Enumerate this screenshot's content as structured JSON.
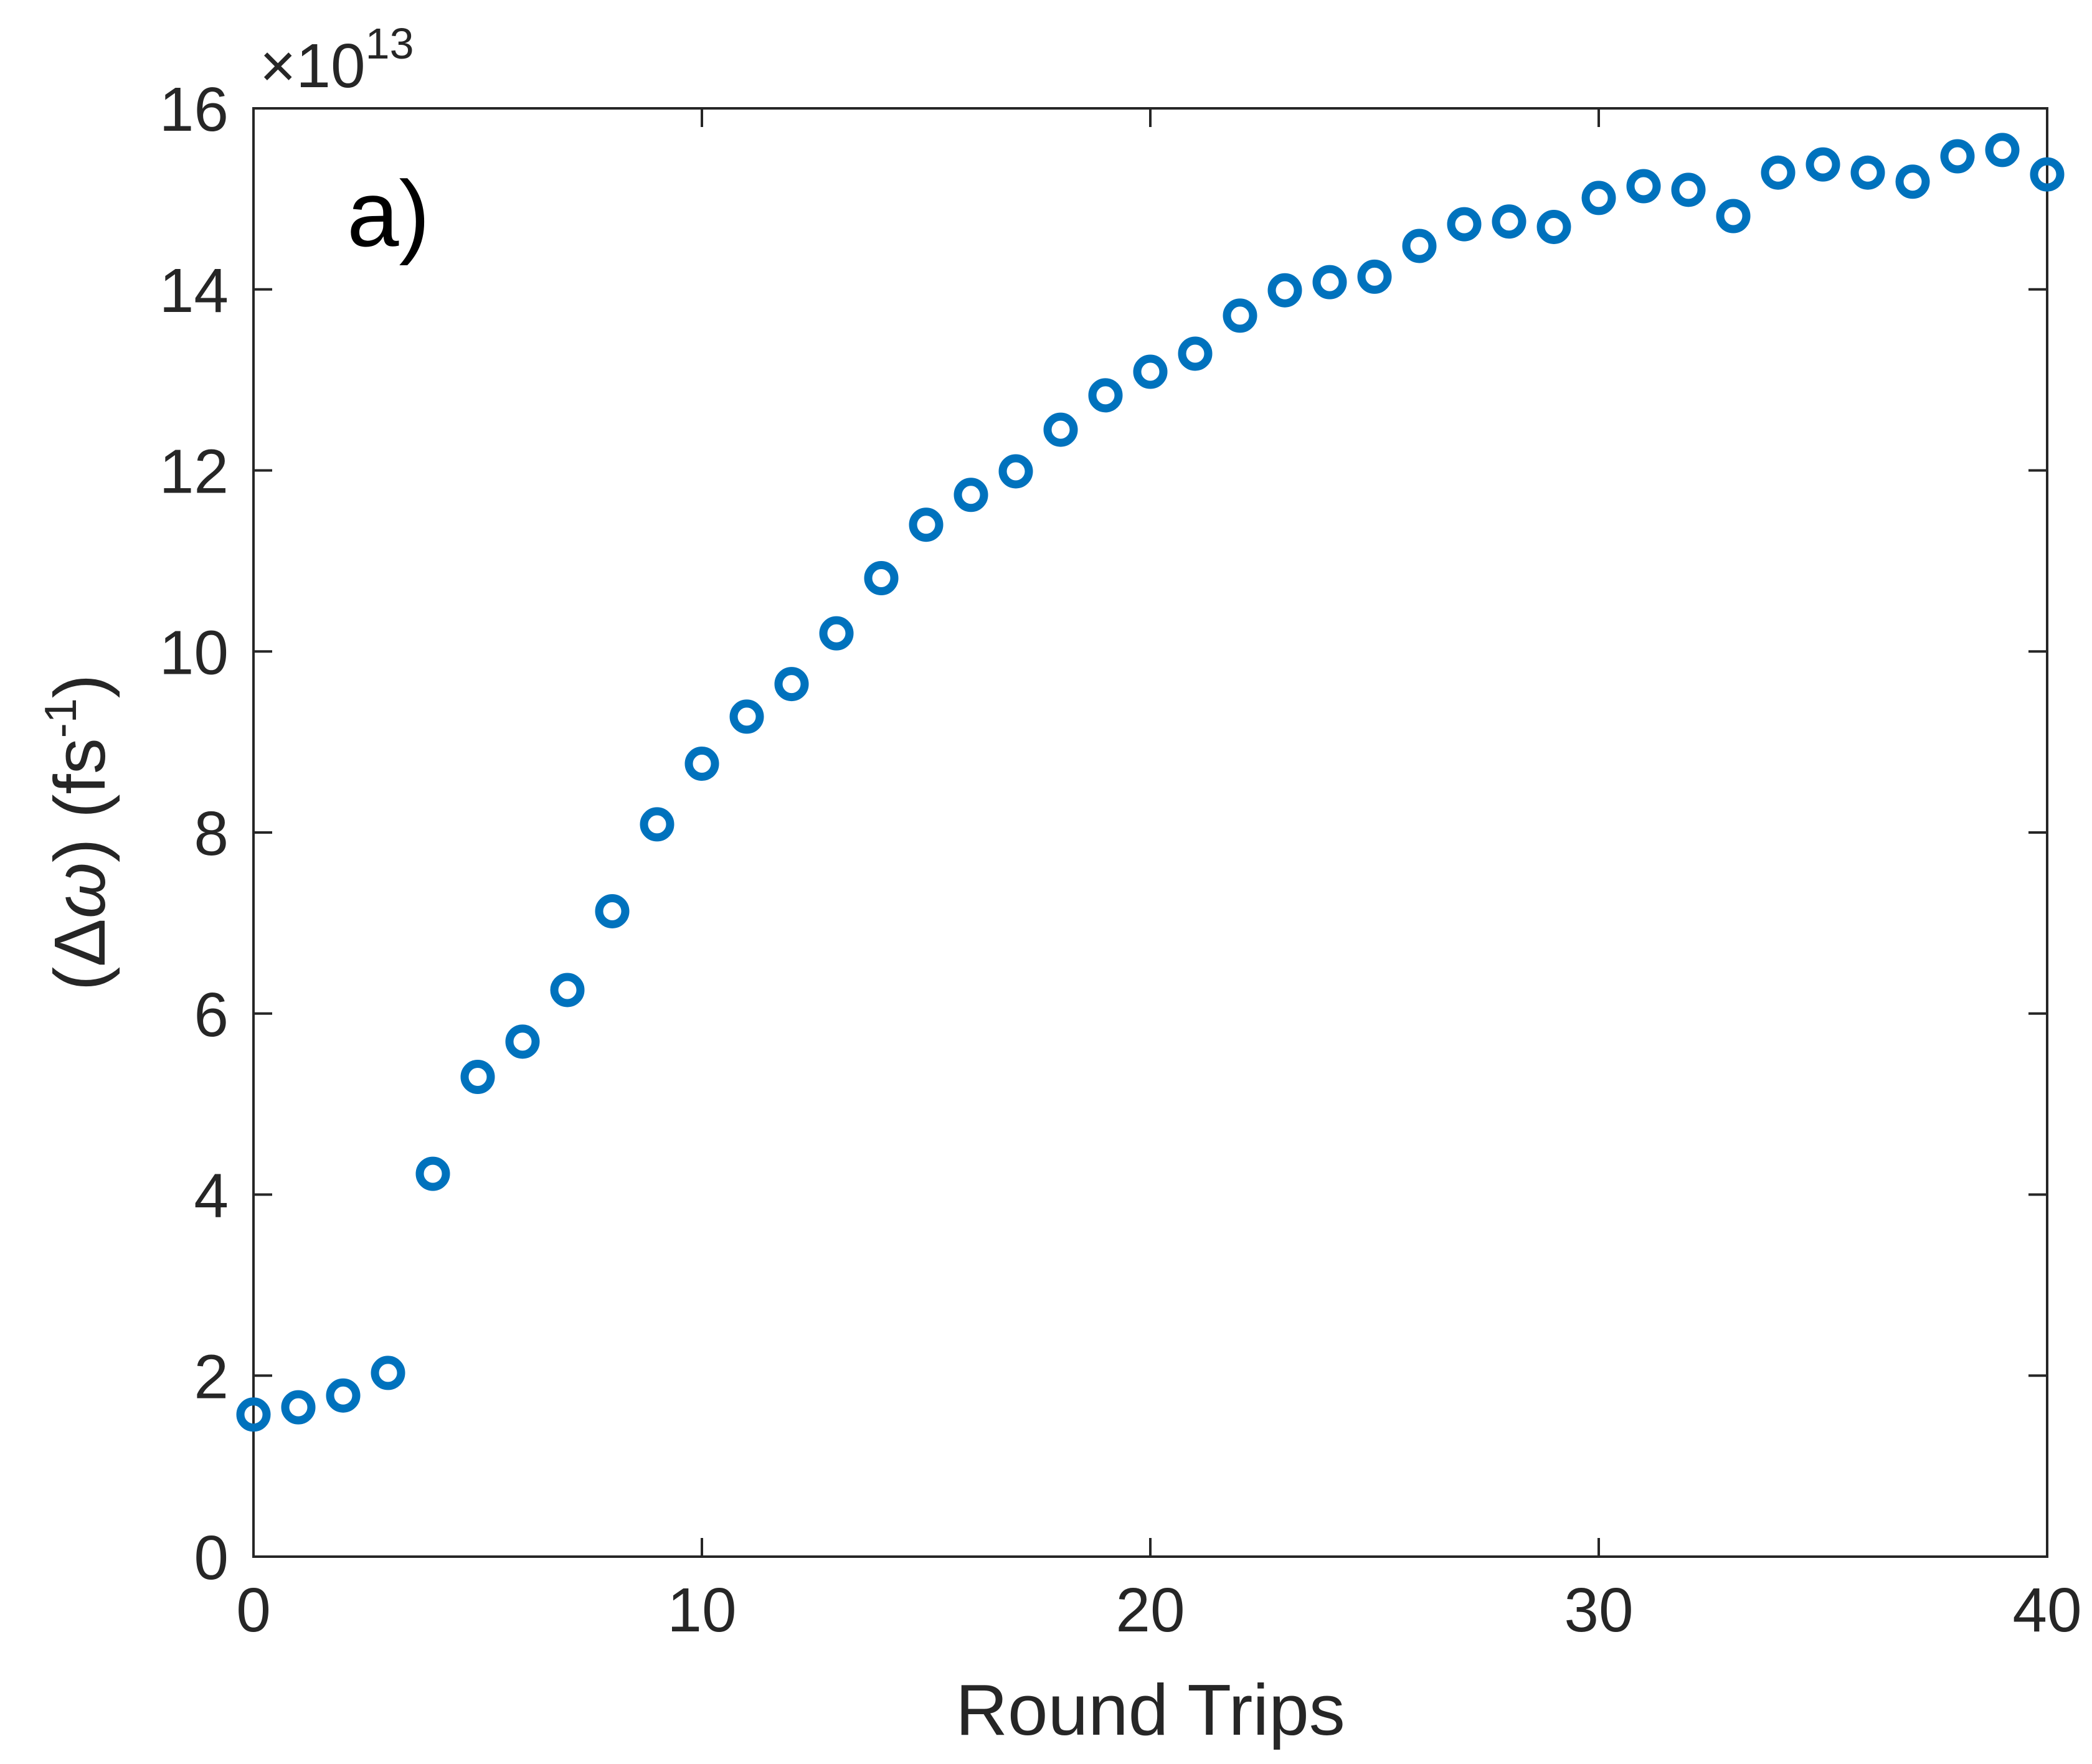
{
  "chart_data": {
    "type": "scatter",
    "title": "",
    "panel_label": "a)",
    "xlabel": "Round Trips",
    "ylabel_left": "(",
    "ylabel_delta": "Δ",
    "ylabel_omega": "ω",
    "ylabel_right": ") (fs",
    "ylabel_sup": "-1",
    "ylabel_close": ")",
    "y_multiplier_prefix": "×10",
    "y_multiplier_exp": "13",
    "xlim": [
      0,
      40
    ],
    "ylim": [
      0,
      16
    ],
    "x_ticks": [
      "0",
      "10",
      "20",
      "30",
      "40"
    ],
    "y_ticks": [
      "0",
      "2",
      "4",
      "6",
      "8",
      "10",
      "12",
      "14",
      "16"
    ],
    "grid": false,
    "marker": "circle-open",
    "colors": {
      "series": "#0072BD",
      "axis": "#262626"
    },
    "series": [
      {
        "x": [
          0,
          1,
          2,
          3,
          4,
          5,
          6,
          7,
          8,
          9,
          10,
          11,
          12,
          13,
          14,
          15,
          16,
          17,
          18,
          19,
          20,
          21,
          22,
          23,
          24,
          25,
          26,
          27,
          28,
          29,
          30,
          31,
          32,
          33,
          34,
          35,
          36,
          37,
          38,
          39,
          40
        ],
        "y": [
          1.57,
          1.65,
          1.78,
          2.03,
          4.23,
          5.3,
          5.69,
          6.26,
          7.13,
          8.09,
          8.76,
          9.28,
          9.64,
          10.2,
          10.81,
          11.4,
          11.73,
          11.99,
          12.45,
          12.83,
          13.09,
          13.29,
          13.71,
          13.99,
          14.08,
          14.14,
          14.48,
          14.72,
          14.75,
          14.69,
          15.01,
          15.14,
          15.1,
          14.81,
          15.29,
          15.38,
          15.29,
          15.19,
          15.47,
          15.54,
          15.27
        ]
      }
    ]
  }
}
